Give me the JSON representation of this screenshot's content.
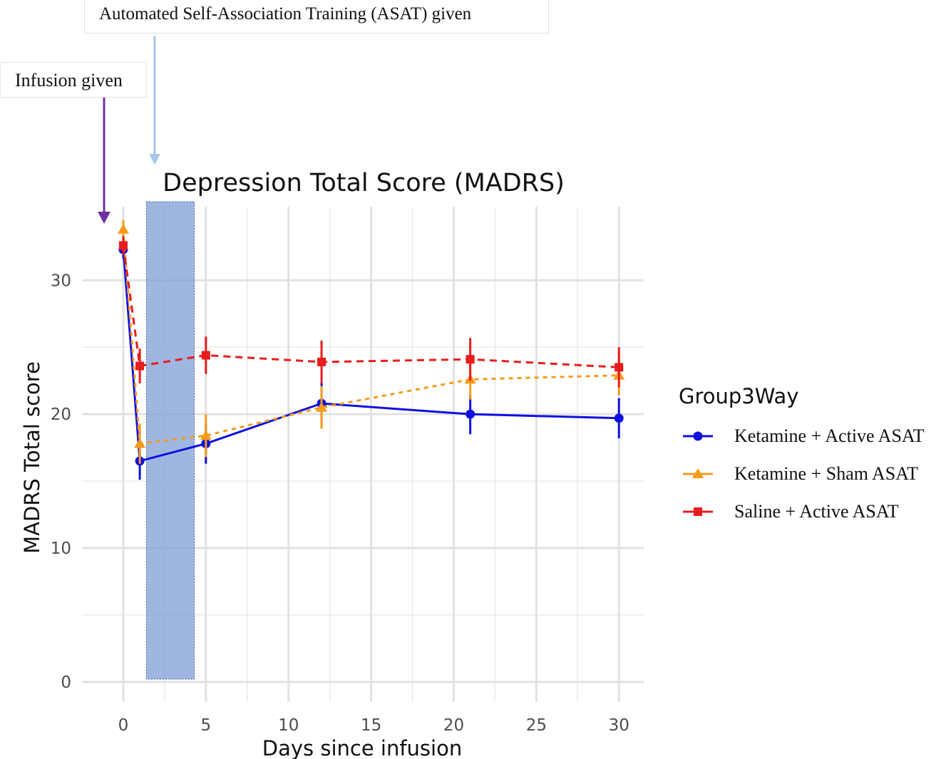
{
  "annotations": {
    "asat_label": "Automated Self-Association Training (ASAT) given",
    "infusion_label": "Infusion given",
    "asat_arrow_color": "#a7c7e7",
    "infusion_arrow_color": "#7030a0",
    "asat_window_days": [
      1.4,
      4.3
    ],
    "asat_window_color": "#7f9fd6"
  },
  "chart_data": {
    "type": "line",
    "title": "Depression Total Score (MADRS)",
    "xlabel": "Days since infusion",
    "ylabel": "MADRS Total score",
    "xlim": [
      -2.5,
      31.5
    ],
    "ylim": [
      -1.5,
      35.5
    ],
    "x_ticks": [
      0,
      5,
      10,
      15,
      20,
      25,
      30
    ],
    "x_tick_labels": [
      "0",
      "5",
      "10",
      "15",
      "20",
      "25",
      "30"
    ],
    "y_ticks": [
      0,
      10,
      20,
      30
    ],
    "y_tick_labels": [
      "0",
      "10",
      "20",
      "30"
    ],
    "grid": true,
    "legend": {
      "title": "Group3Way",
      "position": "right"
    },
    "series": [
      {
        "name": "Ketamine + Active ASAT",
        "color": "#1010e0",
        "marker": "circle",
        "dash": "solid",
        "x": [
          0,
          1,
          5,
          12,
          21,
          30
        ],
        "values": [
          32.3,
          16.5,
          17.8,
          20.8,
          20.0,
          19.7
        ],
        "error_low": [
          31.6,
          15.1,
          16.3,
          19.3,
          18.5,
          18.2
        ],
        "error_high": [
          33.0,
          17.9,
          19.3,
          22.3,
          21.5,
          21.2
        ]
      },
      {
        "name": "Ketamine + Sham ASAT",
        "color": "#f59b1b",
        "marker": "triangle",
        "dash": "dotted",
        "x": [
          0,
          1,
          5,
          12,
          21,
          30
        ],
        "values": [
          33.8,
          17.8,
          18.4,
          20.5,
          22.6,
          22.9
        ],
        "error_low": [
          33.1,
          16.3,
          16.8,
          18.9,
          21.1,
          21.4
        ],
        "error_high": [
          34.5,
          19.3,
          20.0,
          22.1,
          24.1,
          24.4
        ]
      },
      {
        "name": "Saline + Active ASAT",
        "color": "#e81c1c",
        "marker": "square",
        "dash": "dashed",
        "x": [
          0,
          1,
          5,
          12,
          21,
          30
        ],
        "values": [
          32.6,
          23.6,
          24.4,
          23.9,
          24.1,
          23.5
        ],
        "error_low": [
          31.9,
          22.3,
          23.0,
          22.3,
          22.5,
          22.0
        ],
        "error_high": [
          33.3,
          24.9,
          25.8,
          25.5,
          25.7,
          25.0
        ]
      }
    ]
  }
}
